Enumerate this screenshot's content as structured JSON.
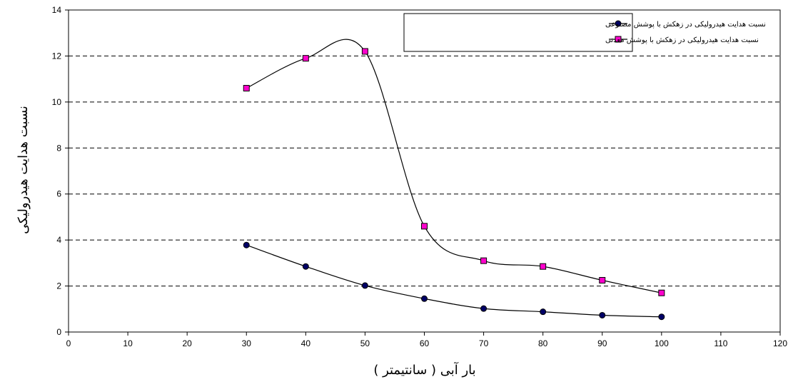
{
  "chart_data": {
    "type": "line",
    "xlabel": "بار آبی ( سانتیمتر )",
    "ylabel": "نسبت هدایت هیدرولیکی",
    "xlim": [
      0,
      120
    ],
    "ylim": [
      0,
      14
    ],
    "x_ticks": [
      0,
      10,
      20,
      30,
      40,
      50,
      60,
      70,
      80,
      90,
      100,
      110,
      120
    ],
    "y_ticks": [
      0,
      2,
      4,
      6,
      8,
      10,
      12,
      14
    ],
    "grid": "horizontal dashed",
    "legend_position": "top-right",
    "smooth": true,
    "series": [
      {
        "name": "نسبت هدایت هیدرولیکی در زهکش با پوشش مصنوعی",
        "marker": "circle",
        "marker_color": "#000066",
        "x": [
          30,
          40,
          50,
          60,
          70,
          80,
          90,
          100
        ],
        "y": [
          3.78,
          2.85,
          2.02,
          1.45,
          1.02,
          0.88,
          0.73,
          0.66
        ]
      },
      {
        "name": "نسبت هدایت هیدرولیکی در زهکش با پوشش معدنی",
        "marker": "square",
        "marker_color": "#ff00cc",
        "x": [
          30,
          40,
          50,
          60,
          70,
          80,
          90,
          100
        ],
        "y": [
          10.6,
          11.9,
          12.2,
          4.6,
          3.1,
          2.85,
          2.25,
          1.7
        ]
      }
    ]
  }
}
